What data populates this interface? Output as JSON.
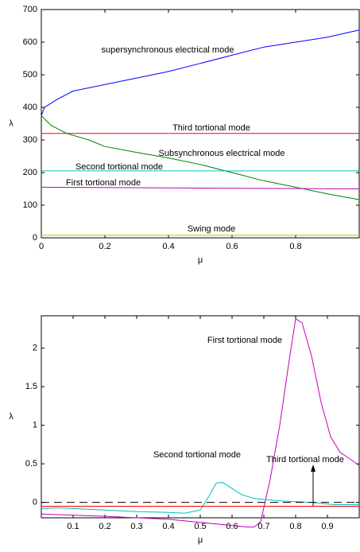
{
  "chart_data": [
    {
      "type": "line",
      "xlabel": "μ",
      "ylabel": "λ",
      "xlim": [
        0,
        1
      ],
      "ylim": [
        0,
        700
      ],
      "xticks": [
        0,
        0.2,
        0.4,
        0.6,
        0.8
      ],
      "yticks": [
        0,
        100,
        200,
        300,
        400,
        500,
        600,
        700
      ],
      "series": [
        {
          "name": "supersynchronous electrical mode",
          "color": "#0000ff",
          "x": [
            0,
            0.01,
            0.05,
            0.1,
            0.2,
            0.3,
            0.4,
            0.5,
            0.6,
            0.7,
            0.8,
            0.9,
            1.0
          ],
          "values": [
            375,
            400,
            425,
            450,
            470,
            490,
            510,
            535,
            560,
            585,
            600,
            615,
            637
          ]
        },
        {
          "name": "Third tortional mode",
          "color": "#ff0000",
          "x": [
            0,
            1
          ],
          "values": [
            320,
            320
          ]
        },
        {
          "name": "Subsynchronous electrical mode",
          "color": "#008000",
          "x": [
            0,
            0.03,
            0.08,
            0.15,
            0.2,
            0.3,
            0.4,
            0.5,
            0.6,
            0.7,
            0.8,
            0.9,
            1.0
          ],
          "values": [
            375,
            345,
            320,
            300,
            280,
            262,
            245,
            225,
            200,
            175,
            155,
            135,
            117
          ]
        },
        {
          "name": "Second tortional mode",
          "color": "#00c0c0",
          "x": [
            0,
            1
          ],
          "values": [
            205,
            205
          ]
        },
        {
          "name": "First tortional mode",
          "color": "#c000c0",
          "x": [
            0,
            1
          ],
          "values": [
            155,
            150
          ]
        },
        {
          "name": "Swing mode",
          "color": "#c0c000",
          "x": [
            0,
            1
          ],
          "values": [
            8,
            8
          ]
        }
      ]
    },
    {
      "type": "line",
      "xlabel": "μ",
      "ylabel": "λ",
      "xlim": [
        0,
        1
      ],
      "ylim": [
        -0.2,
        2.42
      ],
      "xticks": [
        0.1,
        0.2,
        0.3,
        0.4,
        0.5,
        0.6,
        0.7,
        0.8,
        0.9
      ],
      "yticks": [
        0,
        0.5,
        1,
        1.5,
        2
      ],
      "series": [
        {
          "name": "First tortional mode",
          "color": "#c000c0",
          "x": [
            0,
            0.2,
            0.4,
            0.5,
            0.6,
            0.65,
            0.67,
            0.69,
            0.72,
            0.75,
            0.78,
            0.8,
            0.82,
            0.85,
            0.88,
            0.91,
            0.94,
            1.0
          ],
          "values": [
            -0.15,
            -0.18,
            -0.22,
            -0.26,
            -0.3,
            -0.32,
            -0.32,
            -0.25,
            0.3,
            1.0,
            1.85,
            2.38,
            2.33,
            1.9,
            1.3,
            0.85,
            0.65,
            0.48
          ]
        },
        {
          "name": "Second tortional mode",
          "color": "#00c0c0",
          "x": [
            0,
            0.05,
            0.2,
            0.3,
            0.4,
            0.45,
            0.5,
            0.53,
            0.55,
            0.57,
            0.6,
            0.63,
            0.67,
            0.75,
            0.85,
            0.92,
            1.0
          ],
          "values": [
            -0.08,
            -0.07,
            -0.1,
            -0.12,
            -0.13,
            -0.14,
            -0.1,
            0.1,
            0.25,
            0.26,
            0.18,
            0.1,
            0.05,
            0.02,
            0,
            -0.03,
            -0.03
          ]
        },
        {
          "name": "Third tortional mode",
          "color": "#ff0000",
          "x": [
            0,
            1
          ],
          "values": [
            -0.05,
            -0.05
          ]
        },
        {
          "color": "#000000",
          "style": "dashed",
          "x": [
            0,
            1
          ],
          "values": [
            0,
            0
          ]
        }
      ]
    }
  ]
}
